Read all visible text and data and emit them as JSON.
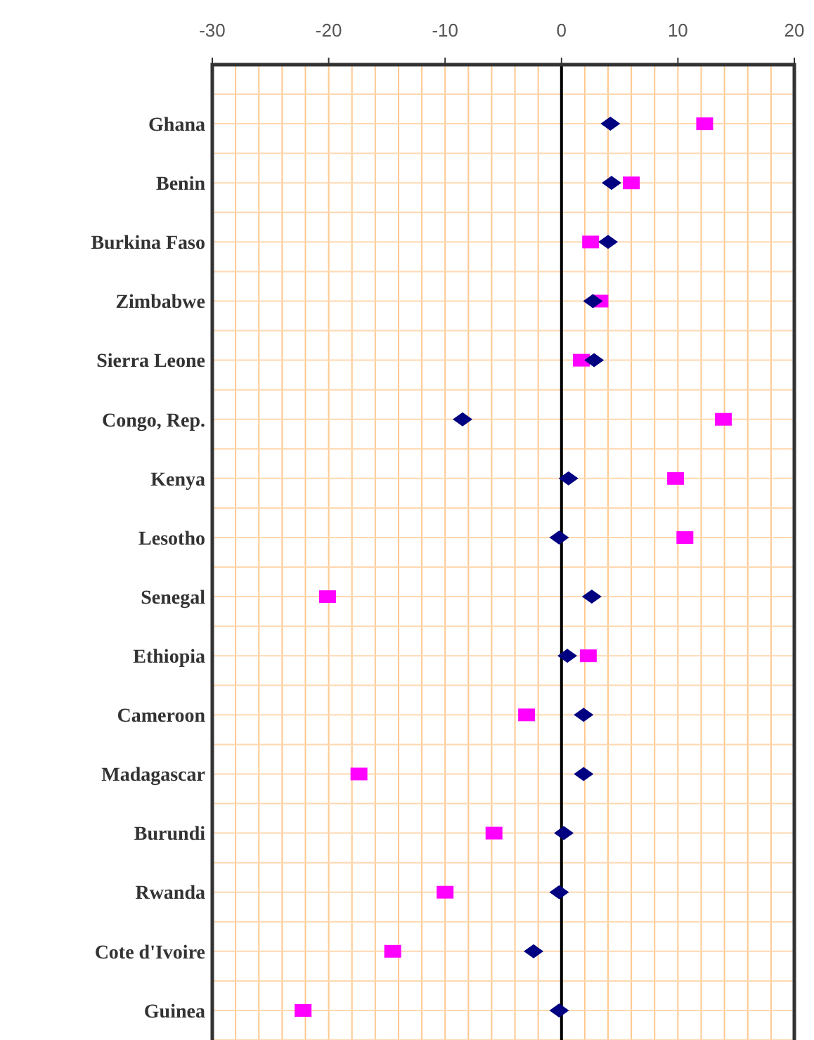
{
  "chart_data": {
    "type": "scatter",
    "orientation": "horizontal",
    "categories": [
      "Ghana",
      "Benin",
      "Burkina Faso",
      "Zimbabwe",
      "Sierra Leone",
      "Congo, Rep.",
      "Kenya",
      "Lesotho",
      "Senegal",
      "Ethiopia",
      "Cameroon",
      "Madagascar",
      "Burundi",
      "Rwanda",
      "Cote d'Ivoire",
      "Guinea"
    ],
    "series": [
      {
        "color": "#000080",
        "marker": "diamond",
        "values": [
          4.2,
          4.3,
          4.0,
          2.7,
          2.8,
          -8.5,
          0.6,
          -0.2,
          2.6,
          0.5,
          1.9,
          1.9,
          0.2,
          -0.2,
          -2.4,
          -0.2
        ]
      },
      {
        "color": "#ff00ff",
        "marker": "square",
        "values": [
          12.3,
          6.0,
          2.5,
          3.3,
          1.7,
          13.9,
          9.8,
          10.6,
          -20.1,
          2.3,
          -3.0,
          -17.4,
          -5.8,
          -10.0,
          -14.5,
          -22.2
        ]
      }
    ],
    "xlim": [
      -30,
      20
    ],
    "xticks": [
      -30,
      -20,
      -10,
      0,
      10,
      20
    ],
    "grid": true,
    "ref_lines": [
      {
        "axis": "x",
        "value": 0,
        "color": "#000000"
      }
    ]
  }
}
